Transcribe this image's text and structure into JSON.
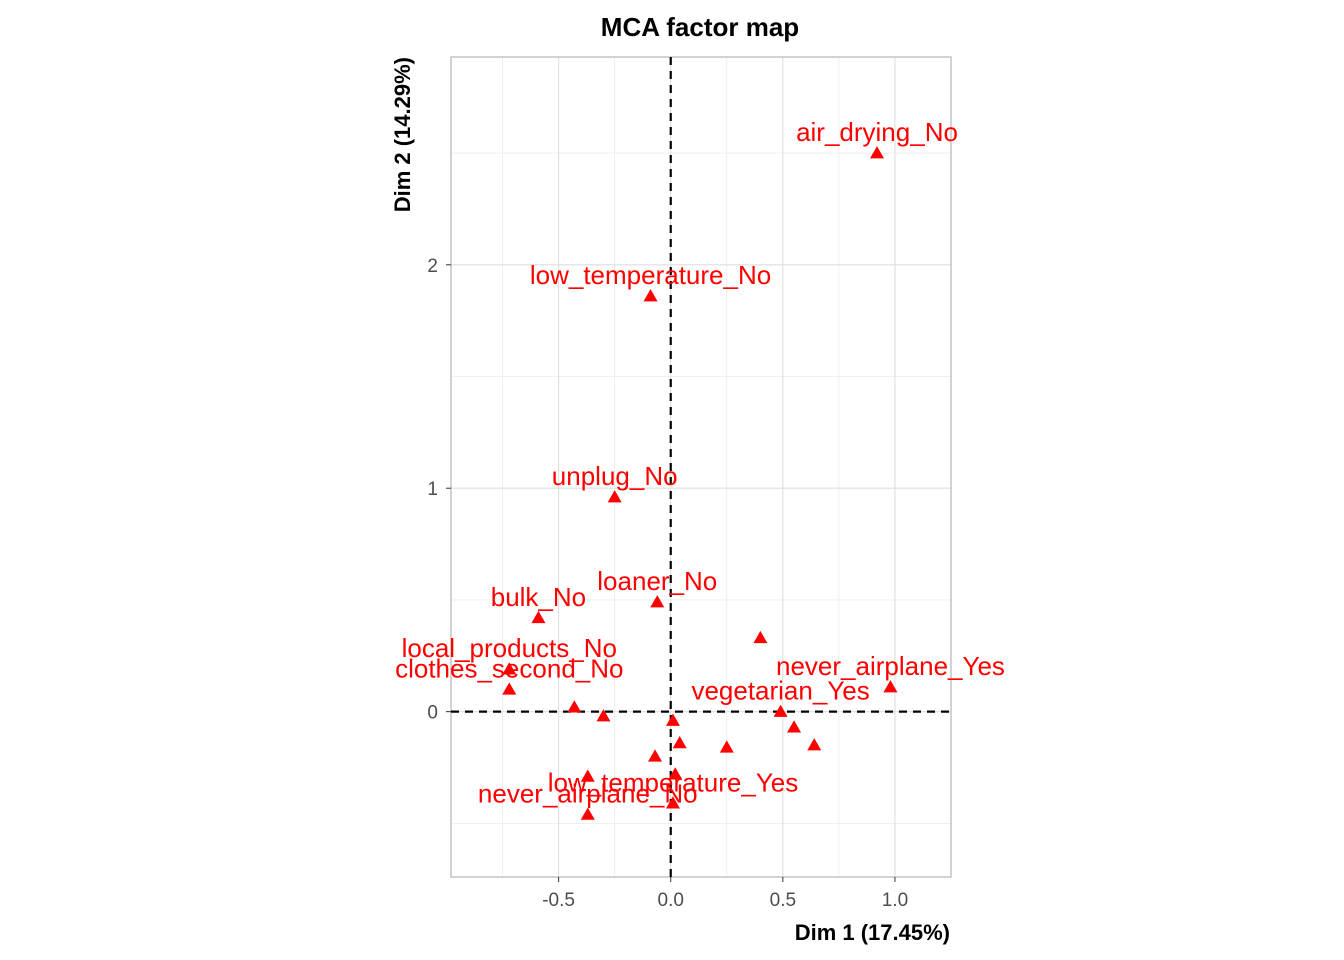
{
  "chart_data": {
    "type": "scatter",
    "title": "MCA factor map",
    "xlabel": "Dim 1 (17.45%)",
    "ylabel": "Dim 2 (14.29%)",
    "xlim": [
      -0.98,
      1.25
    ],
    "ylim": [
      -0.74,
      2.93
    ],
    "xticks": [
      -0.5,
      0.0,
      0.5,
      1.0
    ],
    "xtick_labels": [
      "-0.5",
      "0.0",
      "0.5",
      "1.0"
    ],
    "yticks": [
      0,
      1,
      2
    ],
    "ytick_labels": [
      "0",
      "1",
      "2"
    ],
    "grid": true,
    "reference_lines": {
      "x": 0,
      "y": 0,
      "style": "dashed"
    },
    "marker": "triangle",
    "point_color": "#ff0000",
    "label_color": "#ff0000",
    "points": [
      {
        "x": 0.92,
        "y": 2.5,
        "label": "air_drying_No"
      },
      {
        "x": -0.09,
        "y": 1.86,
        "label": "low_temperature_No"
      },
      {
        "x": -0.25,
        "y": 0.96,
        "label": "unplug_No"
      },
      {
        "x": -0.06,
        "y": 0.49,
        "label": "loaner_No"
      },
      {
        "x": -0.59,
        "y": 0.42,
        "label": "bulk_No"
      },
      {
        "x": -0.72,
        "y": 0.19,
        "label": "local_products_No"
      },
      {
        "x": 0.4,
        "y": 0.33,
        "label": ""
      },
      {
        "x": 0.98,
        "y": 0.11,
        "label": "never_airplane_Yes"
      },
      {
        "x": -0.72,
        "y": 0.1,
        "label": "clothes_second_No"
      },
      {
        "x": 0.49,
        "y": 0.0,
        "label": "vegetarian_Yes"
      },
      {
        "x": -0.43,
        "y": 0.02,
        "label": ""
      },
      {
        "x": -0.3,
        "y": -0.02,
        "label": ""
      },
      {
        "x": 0.01,
        "y": -0.04,
        "label": ""
      },
      {
        "x": 0.55,
        "y": -0.07,
        "label": ""
      },
      {
        "x": 0.04,
        "y": -0.14,
        "label": ""
      },
      {
        "x": 0.25,
        "y": -0.16,
        "label": ""
      },
      {
        "x": 0.64,
        "y": -0.15,
        "label": ""
      },
      {
        "x": -0.07,
        "y": -0.2,
        "label": ""
      },
      {
        "x": 0.02,
        "y": -0.28,
        "label": ""
      },
      {
        "x": -0.37,
        "y": -0.29,
        "label": ""
      },
      {
        "x": 0.01,
        "y": -0.41,
        "label": "low_temperature_Yes"
      },
      {
        "x": -0.37,
        "y": -0.46,
        "label": "never_airplane_No"
      }
    ]
  }
}
